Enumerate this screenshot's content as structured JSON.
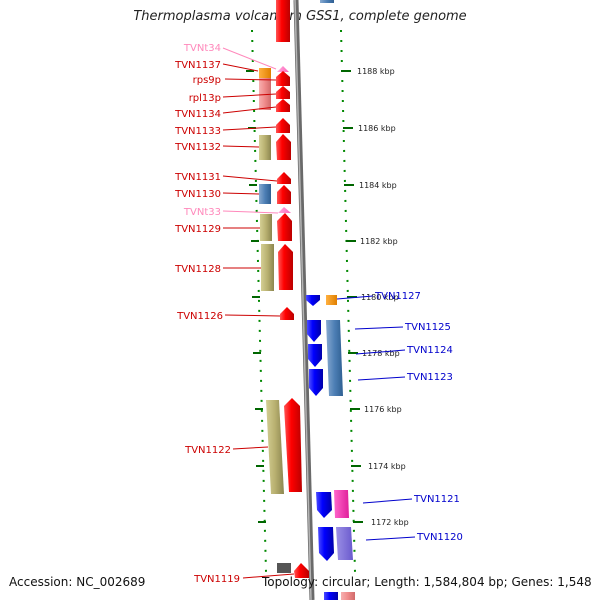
{
  "title": "Thermoplasma volcanium GSS1, complete genome",
  "footer": {
    "accession": "Accession: NC_002689",
    "topology": "Topology: circular; Length: 1,584,804 bp; Genes: 1,548"
  },
  "colors": {
    "forward": "#ff0000",
    "reverse": "#0000ff",
    "rna_label": "#ff88bb",
    "backbone": "#888888",
    "ticks": "#006600"
  },
  "kbp_ticks": [
    "1188 kbp",
    "1186 kbp",
    "1184 kbp",
    "1182 kbp",
    "1180 kbp",
    "1178 kbp",
    "1176 kbp",
    "1174 kbp",
    "1172 kbp"
  ],
  "forward_genes": [
    "TVNt34",
    "TVN1137",
    "rps9p",
    "rpl13p",
    "TVN1134",
    "TVN1133",
    "TVN1132",
    "TVN1131",
    "TVN1130",
    "TVNt33",
    "TVN1129",
    "TVN1128",
    "TVN1126",
    "TVN1122",
    "TVN1119"
  ],
  "reverse_genes": [
    "TVN1127",
    "TVN1125",
    "TVN1124",
    "TVN1123",
    "TVN1121",
    "TVN1120"
  ]
}
